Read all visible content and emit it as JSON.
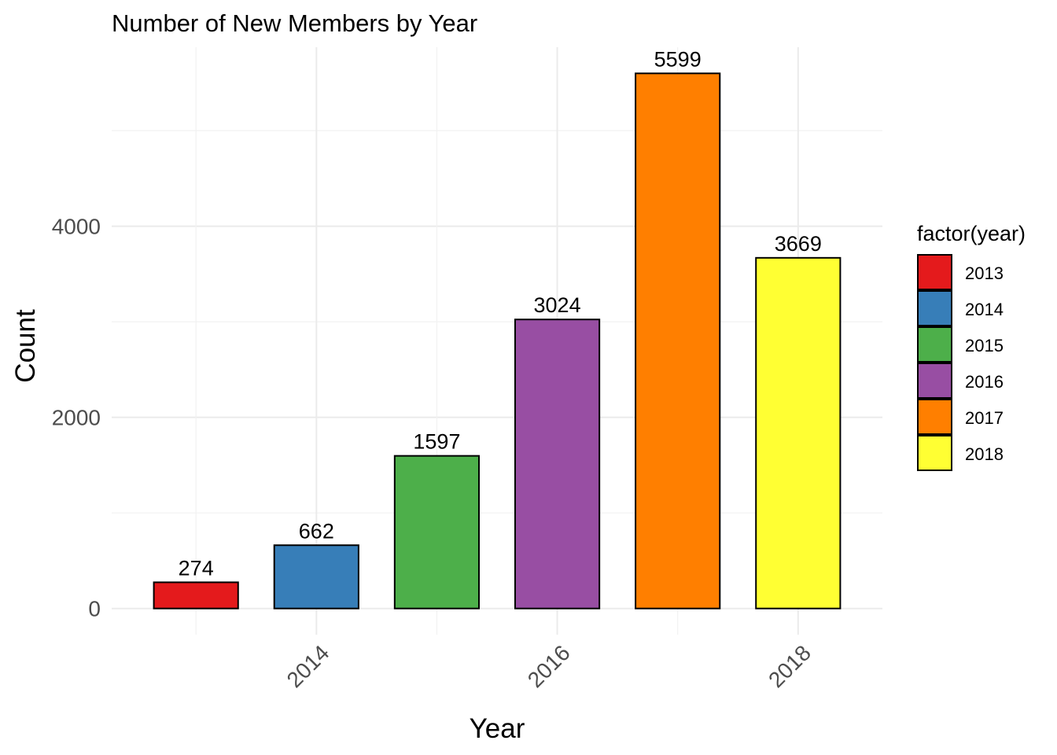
{
  "chart_data": {
    "type": "bar",
    "title": "Number of New Members by Year",
    "xlabel": "Year",
    "ylabel": "Count",
    "categories": [
      "2013",
      "2014",
      "2015",
      "2016",
      "2017",
      "2018"
    ],
    "values": [
      274,
      662,
      1597,
      3024,
      5599,
      3669
    ],
    "data_labels": [
      "274",
      "662",
      "1597",
      "3024",
      "5599",
      "3669"
    ],
    "colors": [
      "#E41A1C",
      "#377EB8",
      "#4DAF4A",
      "#984EA3",
      "#FF7F00",
      "#FFFF33"
    ],
    "x_ticks": [
      "2014",
      "2016",
      "2018"
    ],
    "y_ticks": [
      0,
      2000,
      4000
    ],
    "y_tick_labels": [
      "0",
      "2000",
      "4000"
    ],
    "ylim": [
      -274,
      5873
    ],
    "xlim": [
      2012.3,
      2018.7
    ],
    "grid": true,
    "legend": {
      "title": "factor(year)",
      "position": "right",
      "entries": [
        "2013",
        "2014",
        "2015",
        "2016",
        "2017",
        "2018"
      ]
    }
  }
}
